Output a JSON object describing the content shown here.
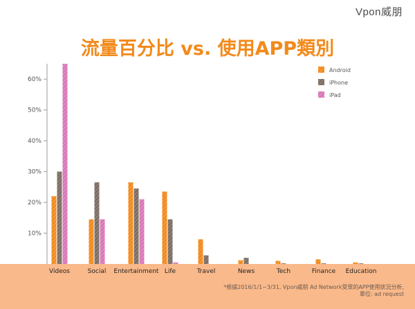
{
  "brand": "Vpon威朋",
  "colors": {
    "android": "#f28a1b",
    "iphone": "#7d6e64",
    "ipad": "#d977b6",
    "title": "#f28a1b",
    "footer_bg": "#f9b98a"
  },
  "note_line1": "*根據2016/1/1~3/31, Vpon威朋 Ad Network受眾的APP使用狀況分析,",
  "note_line2": "單位: ad request",
  "chart_data": {
    "type": "bar",
    "title": "流量百分比 vs. 使用APP類別",
    "categories": [
      "Videos",
      "Social",
      "Entertainment",
      "Life",
      "Travel",
      "News",
      "Tech",
      "Finance",
      "Education"
    ],
    "series": [
      {
        "name": "Android",
        "values": [
          22,
          14.5,
          26.5,
          23.5,
          8,
          1.2,
          1,
          1.5,
          0.5
        ]
      },
      {
        "name": "iPhone",
        "values": [
          30,
          26.5,
          24.5,
          14.5,
          2.8,
          2,
          0.2,
          0.2,
          0.2
        ]
      },
      {
        "name": "iPad",
        "values": [
          65,
          14.5,
          21,
          0.5,
          0,
          0,
          0,
          0,
          0
        ]
      }
    ],
    "yticks": [
      "10%",
      "20%",
      "30%",
      "40%",
      "50%",
      "60%"
    ],
    "ytick_values": [
      10,
      20,
      30,
      40,
      50,
      60
    ],
    "ylim": [
      0,
      65
    ],
    "xlabel": "",
    "ylabel": "",
    "legend": "top-right"
  }
}
